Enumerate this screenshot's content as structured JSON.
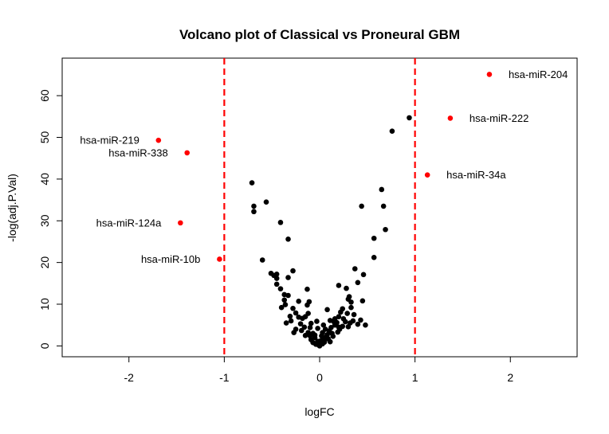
{
  "chart_data": {
    "type": "scatter",
    "title": "Volcano plot of Classical vs Proneural GBM",
    "xlabel": "logFC",
    "ylabel": "-log(adj.P.Val)",
    "xlim": [
      -2.7,
      2.7
    ],
    "ylim": [
      -2.6,
      69
    ],
    "xticks": [
      -2,
      -1,
      0,
      1,
      2
    ],
    "yticks": [
      0,
      10,
      20,
      30,
      40,
      50,
      60
    ],
    "thresholds": [
      -1,
      1
    ],
    "grid": false,
    "colors": {
      "point": "#000000",
      "highlight": "#ff0000",
      "threshold": "#ff0000"
    },
    "highlighted": [
      {
        "label": "hsa-miR-204",
        "x": 1.78,
        "y": 65.1
      },
      {
        "label": "hsa-miR-222",
        "x": 1.37,
        "y": 54.6
      },
      {
        "label": "hsa-miR-34a",
        "x": 1.13,
        "y": 41.0
      },
      {
        "label": "hsa-miR-219",
        "x": -1.69,
        "y": 49.3
      },
      {
        "label": "hsa-miR-338",
        "x": -1.39,
        "y": 46.3
      },
      {
        "label": "hsa-miR-124a",
        "x": -1.46,
        "y": 29.5
      },
      {
        "label": "hsa-miR-10b",
        "x": -1.05,
        "y": 20.8
      }
    ],
    "points": [
      [
        0.94,
        54.7
      ],
      [
        0.76,
        51.5
      ],
      [
        0.65,
        37.5
      ],
      [
        0.44,
        33.5
      ],
      [
        0.67,
        33.5
      ],
      [
        0.69,
        27.9
      ],
      [
        0.57,
        25.8
      ],
      [
        0.57,
        21.2
      ],
      [
        0.37,
        18.5
      ],
      [
        0.46,
        17.1
      ],
      [
        0.4,
        15.2
      ],
      [
        0.28,
        13.8
      ],
      [
        0.31,
        11.8
      ],
      [
        0.3,
        11.2
      ],
      [
        0.33,
        10.5
      ],
      [
        0.2,
        14.5
      ],
      [
        0.45,
        10.8
      ],
      [
        0.33,
        9.2
      ],
      [
        0.24,
        8.9
      ],
      [
        0.22,
        8.1
      ],
      [
        0.36,
        7.5
      ],
      [
        0.29,
        7.8
      ],
      [
        0.2,
        7.0
      ],
      [
        0.43,
        6.2
      ],
      [
        0.4,
        5.2
      ],
      [
        0.48,
        5.0
      ],
      [
        0.35,
        6.0
      ],
      [
        0.27,
        5.8
      ],
      [
        0.25,
        6.5
      ],
      [
        0.16,
        6.5
      ],
      [
        0.08,
        8.7
      ],
      [
        0.11,
        6.1
      ],
      [
        0.15,
        5.8
      ],
      [
        0.16,
        5.0
      ],
      [
        0.2,
        4.5
      ],
      [
        0.24,
        4.7
      ],
      [
        0.3,
        4.6
      ],
      [
        0.1,
        3.6
      ],
      [
        0.13,
        3.0
      ],
      [
        0.08,
        2.7
      ],
      [
        0.06,
        2.1
      ],
      [
        0.14,
        2.3
      ],
      [
        0.04,
        1.4
      ],
      [
        0.05,
        0.9
      ],
      [
        0.09,
        1.7
      ],
      [
        0.19,
        3.3
      ],
      [
        0.21,
        4.0
      ],
      [
        0.32,
        5.5
      ],
      [
        0.18,
        5.6
      ],
      [
        0.12,
        4.4
      ],
      [
        0.03,
        3.2
      ],
      [
        0.02,
        2.4
      ],
      [
        0.01,
        1.2
      ],
      [
        -0.71,
        39.1
      ],
      [
        -0.69,
        33.5
      ],
      [
        -0.69,
        32.2
      ],
      [
        -0.56,
        34.5
      ],
      [
        -0.41,
        29.6
      ],
      [
        -0.33,
        25.6
      ],
      [
        -0.6,
        20.6
      ],
      [
        -0.51,
        17.4
      ],
      [
        -0.48,
        16.9
      ],
      [
        -0.45,
        17.2
      ],
      [
        -0.28,
        18.0
      ],
      [
        -0.45,
        16.2
      ],
      [
        -0.33,
        16.4
      ],
      [
        -0.45,
        14.8
      ],
      [
        -0.41,
        13.7
      ],
      [
        -0.37,
        12.3
      ],
      [
        -0.33,
        12.1
      ],
      [
        -0.37,
        11.0
      ],
      [
        -0.4,
        9.2
      ],
      [
        -0.36,
        9.9
      ],
      [
        -0.13,
        13.6
      ],
      [
        -0.11,
        10.6
      ],
      [
        -0.13,
        9.8
      ],
      [
        -0.22,
        10.7
      ],
      [
        -0.28,
        9.0
      ],
      [
        -0.3,
        6.0
      ],
      [
        -0.18,
        6.6
      ],
      [
        -0.15,
        7.0
      ],
      [
        -0.22,
        6.9
      ],
      [
        -0.03,
        5.9
      ],
      [
        -0.2,
        5.3
      ],
      [
        -0.16,
        4.5
      ],
      [
        -0.25,
        4.0
      ],
      [
        -0.27,
        3.2
      ],
      [
        -0.12,
        3.2
      ],
      [
        -0.1,
        4.4
      ],
      [
        -0.07,
        3.0
      ],
      [
        -0.1,
        2.4
      ],
      [
        -0.05,
        2.6
      ],
      [
        -0.05,
        2.0
      ],
      [
        -0.09,
        1.5
      ],
      [
        -0.02,
        1.1
      ],
      [
        -0.07,
        0.8
      ],
      [
        -0.02,
        0.6
      ],
      [
        -0.04,
        0.4
      ],
      [
        -0.01,
        0.2
      ],
      [
        0.0,
        0.0
      ],
      [
        0.03,
        0.5
      ],
      [
        0.01,
        0.8
      ],
      [
        -0.15,
        2.5
      ],
      [
        -0.19,
        3.7
      ],
      [
        -0.09,
        5.4
      ],
      [
        -0.02,
        4.2
      ],
      [
        0.06,
        4.0
      ],
      [
        0.04,
        5.0
      ],
      [
        -0.35,
        5.5
      ],
      [
        -0.31,
        7.1
      ],
      [
        -0.25,
        7.9
      ],
      [
        -0.12,
        7.8
      ],
      [
        0.11,
        1.0
      ]
    ]
  }
}
